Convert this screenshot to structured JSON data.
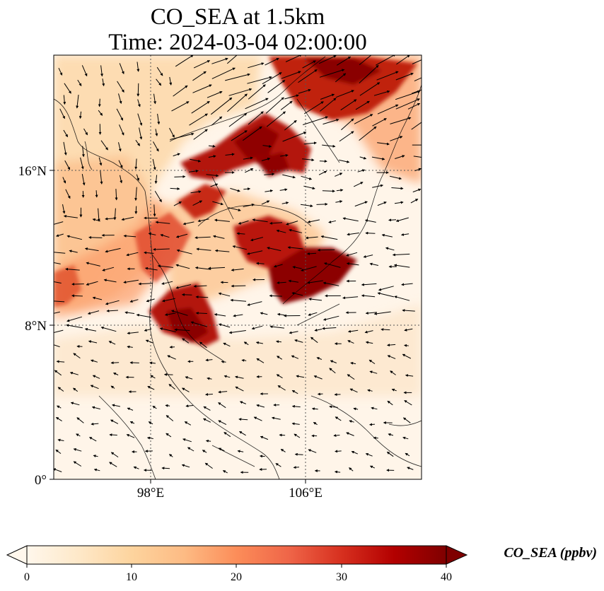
{
  "title": {
    "line1": "CO_SEA at 1.5km",
    "line2": "Time: 2024-03-04 02:00:00"
  },
  "map": {
    "lon_range": [
      93,
      112
    ],
    "lat_range": [
      0,
      22
    ],
    "x_ticks": [
      {
        "value": 98,
        "label": "98°E"
      },
      {
        "value": 106,
        "label": "106°E"
      }
    ],
    "y_ticks": [
      {
        "value": 0,
        "label": "0°"
      },
      {
        "value": 8,
        "label": "8°N"
      },
      {
        "value": 16,
        "label": "16°N"
      }
    ],
    "gridlines": "dotted",
    "wind_vectors": true,
    "coastlines": true
  },
  "colorbar": {
    "label": "CO_SEA (ppbv)",
    "colormap": "OrRd",
    "min": 0,
    "max": 40,
    "extend": "both",
    "ticks": [
      {
        "value": 0,
        "label": "0"
      },
      {
        "value": 10,
        "label": "10"
      },
      {
        "value": 20,
        "label": "20"
      },
      {
        "value": 30,
        "label": "30"
      },
      {
        "value": 40,
        "label": "40"
      }
    ],
    "colors": [
      "#fff7ec",
      "#fee8c8",
      "#fdd49e",
      "#fdbb84",
      "#fc8d59",
      "#ef6548",
      "#d7301f",
      "#b30000",
      "#7f0000"
    ]
  }
}
